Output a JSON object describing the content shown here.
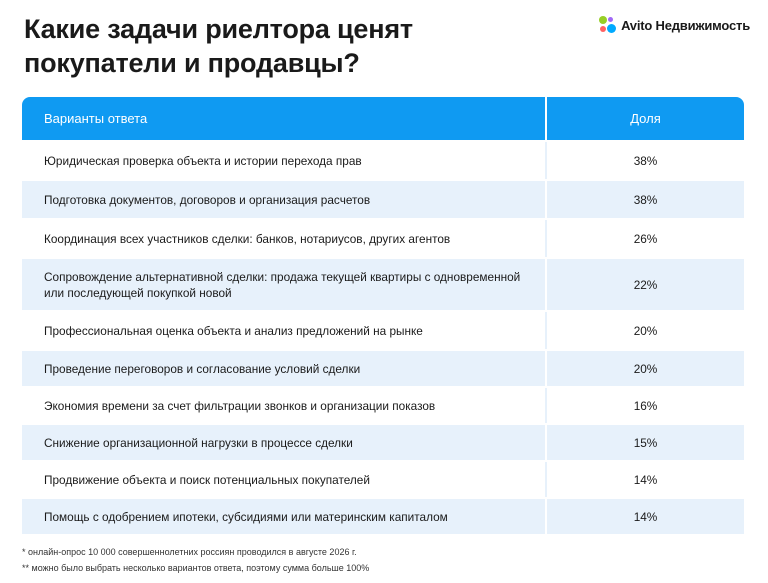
{
  "title": "Какие задачи риелтора ценят покупатели и продавцы?",
  "brand": {
    "name": "Avito Недвижимость",
    "colors": [
      "#97cf26",
      "#a169f7",
      "#ff6163",
      "#00aaff"
    ]
  },
  "table": {
    "header_color": "#0f9af2",
    "stripe_color": "#e7f1fb",
    "columns": [
      "Варианты ответа",
      "Доля"
    ],
    "rows": [
      {
        "answer": "Юридическая проверка объекта и истории перехода прав",
        "share": "38%"
      },
      {
        "answer": "Подготовка документов, договоров и организация расчетов",
        "share": "38%"
      },
      {
        "answer": "Координация всех участников сделки: банков, нотариусов, других агентов",
        "share": "26%"
      },
      {
        "answer": "Сопровождение альтернативной сделки: продажа текущей квартиры с одновременной или последующей покупкой новой",
        "share": "22%"
      },
      {
        "answer": "Профессиональная оценка объекта и анализ предложений на рынке",
        "share": "20%"
      },
      {
        "answer": "Проведение переговоров и согласование условий сделки",
        "share": "20%"
      },
      {
        "answer": "Экономия времени за счет фильтрации звонков и организации показов",
        "share": "16%"
      },
      {
        "answer": "Снижение организационной нагрузки в процессе сделки",
        "share": "15%"
      },
      {
        "answer": "Продвижение объекта и поиск потенциальных покупателей",
        "share": "14%"
      },
      {
        "answer": "Помощь с одобрением ипотеки, субсидиями или материнским капиталом",
        "share": "14%"
      }
    ]
  },
  "footnotes": [
    "* онлайн-опрос 10 000 совершеннолетних россиян проводился в августе 2026 г.",
    "** можно было выбрать несколько вариантов ответа, поэтому сумма больше 100%"
  ]
}
